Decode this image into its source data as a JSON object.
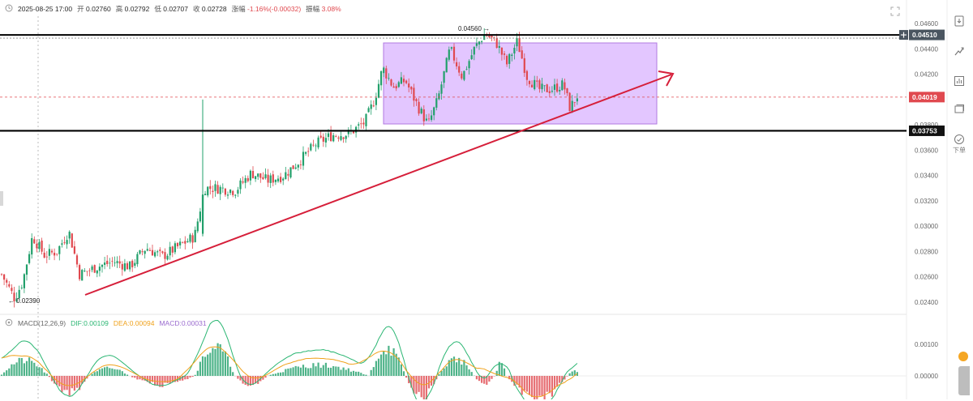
{
  "info": {
    "datetime": "2025-08-25 17:00",
    "open_label": "开",
    "open": "0.02760",
    "high_label": "高",
    "high": "0.02792",
    "low_label": "低",
    "low": "0.02707",
    "close_label": "收",
    "close": "0.02728",
    "change_label": "涨幅",
    "change": "-1.16%(-0.00032)",
    "amp_label": "振幅",
    "amp": "3.08%"
  },
  "macd": {
    "label": "MACD(12,26,9)",
    "dif_label": "DIF:",
    "dif": "0.00109",
    "dea_label": "DEA:",
    "dea": "0.00094",
    "macd_label": "MACD:",
    "macd": "0.00031",
    "colors": {
      "dif": "#2bb673",
      "dea": "#f0a21c",
      "macd": "#9a6bcf"
    }
  },
  "annotations": {
    "high_marker": "0.04560 →",
    "low_marker": "← 0.02390"
  },
  "axis": {
    "price_ticks": [
      "0.04600",
      "0.04400",
      "0.04200",
      "0.03800",
      "0.03600",
      "0.03400",
      "0.03200",
      "0.03000",
      "0.02800",
      "0.02600",
      "0.02400"
    ],
    "macd_ticks": [
      "0.00100",
      "0.00000"
    ],
    "boxes": {
      "resistance": "0.04510",
      "current": "0.04019",
      "support": "0.03753"
    }
  },
  "toolbar": {
    "download_icon": "download-icon",
    "line_icon": "trend-icon",
    "indicator_icon": "bars-icon",
    "layers_icon": "layers-icon",
    "order_icon": "order-icon",
    "order_label": "下单"
  },
  "colors": {
    "up": "#22a06b",
    "down": "#e0494f",
    "box_fill": "#d9b3ff",
    "box_stroke": "#b07ae0",
    "trend": "#d61f3a",
    "current": "#e0494f",
    "level": "#000000"
  }
}
